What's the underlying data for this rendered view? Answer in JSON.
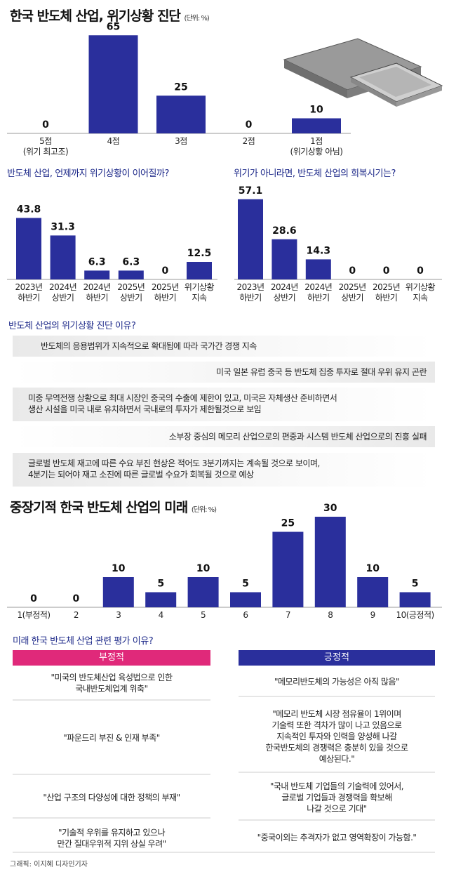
{
  "chart_data": [
    {
      "type": "bar",
      "title": "한국 반도체 산업, 위기상황 진단",
      "unit": "(단위: %)",
      "categories": [
        "5점\n(위기 최고조)",
        "4점",
        "3점",
        "2점",
        "1점\n(위기상황 아님)"
      ],
      "values": [
        0,
        65,
        25,
        0,
        10
      ],
      "color": "#2a2f9c"
    },
    {
      "type": "bar",
      "title": "반도체 산업, 언제까지 위기상황이 이어질까?",
      "categories": [
        "2023년\n하반기",
        "2024년\n상반기",
        "2024년\n하반기",
        "2025년\n상반기",
        "2025년\n하반기",
        "위기상황\n지속"
      ],
      "values": [
        43.8,
        31.3,
        6.3,
        6.3,
        0,
        12.5
      ],
      "color": "#2a2f9c"
    },
    {
      "type": "bar",
      "title": "위기가 아니라면, 반도체 산업의 회복시기는?",
      "categories": [
        "2023년\n하반기",
        "2024년\n상반기",
        "2024년\n하반기",
        "2025년\n상반기",
        "2025년\n하반기",
        "위기상황\n지속"
      ],
      "values": [
        57.1,
        28.6,
        14.3,
        0,
        0,
        0
      ],
      "color": "#2a2f9c"
    },
    {
      "type": "bar",
      "title": "중장기적 한국 반도체 산업의 미래",
      "unit": "(단위: %)",
      "categories": [
        "1(부정적)",
        "2",
        "3",
        "4",
        "5",
        "6",
        "7",
        "8",
        "9",
        "10(긍정적)"
      ],
      "values": [
        0,
        0,
        10,
        5,
        10,
        5,
        25,
        30,
        10,
        5
      ],
      "color": "#2a2f9c"
    }
  ],
  "reasons": {
    "title": "반도체 산업의 위기상황 진단 이유?",
    "items": [
      "반도체의 응용범위가 지속적으로 확대됨에 따라 국가간 경쟁 지속",
      "미국 일본 유럽 중국 등 반도체 집중 투자로 절대 우위 유지 곤란",
      "미중 무역전쟁 상황으로 최대 시장인 중국의 수출에 제한이 있고, 미국은 자체생산 준비하면서\n생산 시설을 미국 내로 유치하면서 국내로의 투자가 제한될것으로 보임",
      "소부장 중심의 메모리 산업으로의 편중과 시스템 반도체 산업으로의 진흥 실패",
      "글로벌 반도체 재고에 따른 수요 부진 현상은 적어도 3분기까지는 계속될 것으로 보이며,\n4분기는 되어야 재고 소진에 따른 글로벌 수요가 회복될 것으로 예상"
    ]
  },
  "evaluation": {
    "title": "미래 한국 반도체 산업 관련 평가 이유?",
    "negative": {
      "header": "부정적",
      "items": [
        "\"미국의 반도체산업 육성법으로 인한\n국내반도체업계 위축\"",
        "\"파운드리 부진 & 인재 부족\"",
        "\"산업 구조의 다양성에 대한 정책의 부재\"",
        "\"기술적 우위를 유지하고 있으나\n만간 질대우위적 지위 상실 우려\""
      ]
    },
    "positive": {
      "header": "긍정적",
      "items": [
        "\"메모리반도체의 가능성은 아직 많음\"",
        "\"메모리 반도체 시장 점유율이 1위이며\n기술력 또한 격차가 많이 나고 있음으로\n지속적인 투자와 인력을 양성해 나갈\n한국반도체의 경쟁력은 충분히 있을 것으로\n예상된다.\"",
        "\"국내 반도체 기업들의 기술력에 있어서,\n글로벌 기업들과 경쟁력을 확보해\n나갈 것으로 기대\"",
        "\"중국이외는 추격자가 없고 영역확장이 가능함.\""
      ]
    }
  },
  "credit": "그래픽: 이지혜 디자인기자"
}
